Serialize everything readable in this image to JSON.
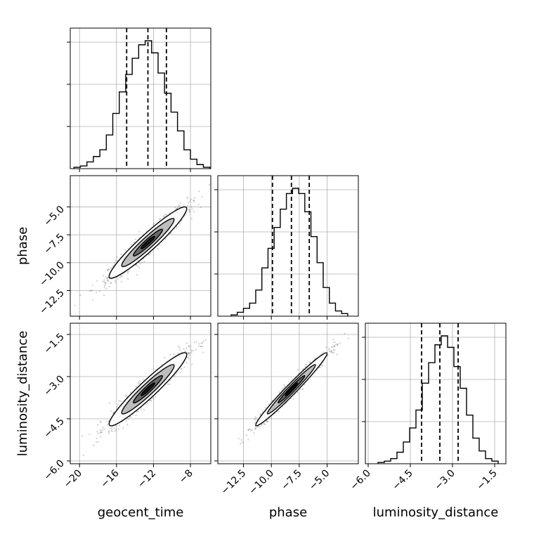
{
  "chart_data": {
    "type": "scatter",
    "kind": "corner",
    "grid": true,
    "parameters": [
      {
        "name": "geocent_time",
        "label": "geocent_time",
        "range": [
          -21,
          -5.8
        ],
        "ticks": [
          -20,
          -16,
          -12,
          -8
        ],
        "tick_labels": [
          "−20",
          "−16",
          "−12",
          "−8"
        ],
        "quantiles": [
          -14.9,
          -12.6,
          -10.6
        ]
      },
      {
        "name": "phase",
        "label": "phase",
        "range": [
          -14.8,
          -2.2
        ],
        "ticks": [
          -12.5,
          -10.0,
          -7.5,
          -5.0
        ],
        "tick_labels": [
          "−12.5",
          "−10.0",
          "−7.5",
          "−5.0"
        ],
        "quantiles": [
          -9.9,
          -8.2,
          -6.6
        ]
      },
      {
        "name": "luminosity_distance",
        "label": "luminosity_distance",
        "range": [
          -6.1,
          -1.1
        ],
        "ticks": [
          -6.0,
          -4.5,
          -3.0,
          -1.5
        ],
        "tick_labels": [
          "−6.0",
          "−4.5",
          "−3.0",
          "−1.5"
        ],
        "quantiles": [
          -4.1,
          -3.45,
          -2.8
        ]
      }
    ],
    "histograms": [
      {
        "bin_edges": [
          -20.6,
          -19.9,
          -19.2,
          -18.5,
          -17.8,
          -17.1,
          -16.4,
          -15.7,
          -15.0,
          -14.3,
          -13.6,
          -12.9,
          -12.2,
          -11.5,
          -10.8,
          -10.1,
          -9.4,
          -8.7,
          -8.0,
          -7.3,
          -6.6,
          -5.9
        ],
        "counts": [
          1,
          2,
          5,
          9,
          14,
          25,
          41,
          57,
          70,
          82,
          92,
          95,
          86,
          71,
          56,
          42,
          28,
          14,
          7,
          3,
          1
        ]
      },
      {
        "bin_edges": [
          -13.6,
          -13.05,
          -12.5,
          -11.95,
          -11.4,
          -10.85,
          -10.3,
          -9.75,
          -9.2,
          -8.65,
          -8.1,
          -7.55,
          -7.0,
          -6.45,
          -5.9,
          -5.35,
          -4.8,
          -4.25,
          -3.7,
          -3.15
        ],
        "counts": [
          1,
          3,
          6,
          10,
          20,
          37,
          52,
          68,
          82,
          94,
          98,
          94,
          80,
          61,
          41,
          22,
          10,
          4,
          2
        ]
      },
      {
        "bin_edges": [
          -5.65,
          -5.425,
          -5.2,
          -4.975,
          -4.75,
          -4.525,
          -4.3,
          -4.075,
          -3.85,
          -3.625,
          -3.4,
          -3.175,
          -2.95,
          -2.725,
          -2.5,
          -2.275,
          -2.05,
          -1.825,
          -1.6,
          -1.375
        ],
        "counts": [
          1,
          2,
          4,
          9,
          17,
          28,
          42,
          63,
          79,
          93,
          100,
          91,
          76,
          59,
          38,
          20,
          10,
          4,
          2
        ]
      }
    ],
    "correlations": [
      {
        "x": "geocent_time",
        "y": "phase",
        "mean": [
          -12.6,
          -8.2
        ],
        "sd": [
          2.1,
          1.6
        ],
        "rho": 0.95
      },
      {
        "x": "geocent_time",
        "y": "luminosity_distance",
        "mean": [
          -12.6,
          -3.45
        ],
        "sd": [
          2.1,
          0.65
        ],
        "rho": 0.95
      },
      {
        "x": "phase",
        "y": "luminosity_distance",
        "mean": [
          -8.2,
          -3.45
        ],
        "sd": [
          1.6,
          0.65
        ],
        "rho": 0.98
      }
    ]
  }
}
